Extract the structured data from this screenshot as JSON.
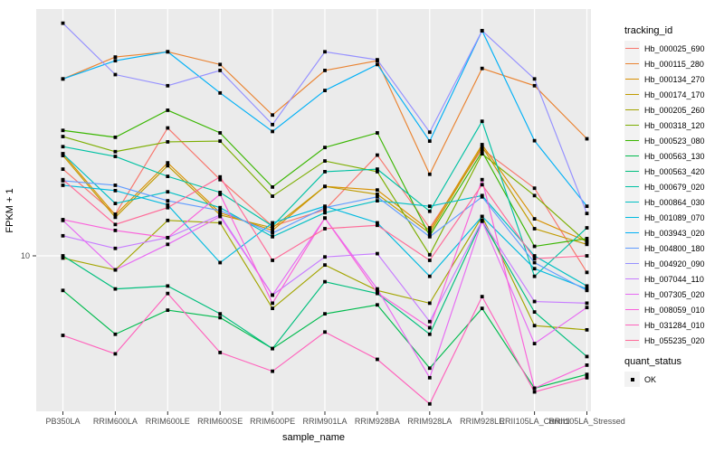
{
  "chart_data": {
    "type": "line",
    "title": "",
    "xlabel": "sample_name",
    "ylabel": "FPKM + 1",
    "y_scale": "log10",
    "y_ticks": [
      10
    ],
    "y_tick_labels": [
      "10"
    ],
    "ylim_log10": [
      0.05,
      1.975
    ],
    "grid": "white-on-gray",
    "panel_bg": "#EBEBEB",
    "grid_color": "#FFFFFF",
    "point_color": "#000000",
    "point_shape": "square",
    "legend": {
      "position": "right",
      "tracking_title": "tracking_id",
      "quant_title": "quant_status",
      "quant_ok_label": "OK"
    },
    "categories": [
      "PB350LA",
      "RRIM600LA",
      "RRIM600LE",
      "RRIM600SE",
      "RRIM600PE",
      "RRIM901LA",
      "RRIM928BA",
      "RRIM928LA",
      "RRIM928LE",
      "RRII105LA_Control",
      "RRII105LA_Stressed"
    ],
    "series": [
      {
        "name": "Hb_000025_690",
        "color": "#F8766D",
        "values": [
          22,
          14.6,
          32,
          20,
          13.1,
          15.2,
          25,
          12.9,
          26.4,
          18.5,
          8.6
        ]
      },
      {
        "name": "Hb_000115_280",
        "color": "#EA8331",
        "values": [
          50,
          61,
          64,
          57,
          36,
          54,
          59,
          21,
          55,
          47,
          29
        ]
      },
      {
        "name": "Hb_000134_270",
        "color": "#D89000",
        "values": [
          25.3,
          14.5,
          23.3,
          14.8,
          12.6,
          18.8,
          18.2,
          12.6,
          27.5,
          14,
          11.4
        ]
      },
      {
        "name": "Hb_000174_170",
        "color": "#C09B00",
        "values": [
          24.9,
          14.2,
          22.7,
          14.5,
          12.9,
          18.8,
          17.5,
          12.3,
          27,
          12.8,
          11.1
        ]
      },
      {
        "name": "Hb_000205_260",
        "color": "#A3A500",
        "values": [
          9.8,
          8.8,
          13.8,
          13.5,
          6.2,
          9.2,
          7.3,
          6.5,
          14.3,
          5.3,
          5.1
        ]
      },
      {
        "name": "Hb_000318_120",
        "color": "#7CAE00",
        "values": [
          29.6,
          25.8,
          28.2,
          28.4,
          17.2,
          23.7,
          21.5,
          10.1,
          25.3,
          17.3,
          11.3
        ]
      },
      {
        "name": "Hb_000523_080",
        "color": "#39B600",
        "values": [
          31.3,
          29.4,
          37.6,
          30.6,
          18.7,
          26.8,
          30.6,
          12,
          25.8,
          10.9,
          11.7
        ]
      },
      {
        "name": "Hb_000563_130",
        "color": "#00BB4E",
        "values": [
          7.3,
          4.9,
          6.1,
          5.7,
          4.3,
          5.9,
          6.4,
          3.6,
          6.2,
          3.0,
          3.4
        ]
      },
      {
        "name": "Hb_000563_420",
        "color": "#00BF7D",
        "values": [
          10,
          7.4,
          7.6,
          5.9,
          4.3,
          7.9,
          7.1,
          4.9,
          13.7,
          6.0,
          4.0
        ]
      },
      {
        "name": "Hb_000679_020",
        "color": "#00C1A3",
        "values": [
          27,
          24.7,
          20.6,
          17.8,
          13.1,
          21.5,
          22,
          15,
          34,
          8.3,
          12.9
        ]
      },
      {
        "name": "Hb_000864_030",
        "color": "#00BFC4",
        "values": [
          25.3,
          16.1,
          17.9,
          15.5,
          11.9,
          14.8,
          16.5,
          15.7,
          17.3,
          10,
          7.6
        ]
      },
      {
        "name": "Hb_001089_070",
        "color": "#00BAE0",
        "values": [
          19,
          18.1,
          15.9,
          9.4,
          13.5,
          15.7,
          13.5,
          8.3,
          14.3,
          8.9,
          7.4
        ]
      },
      {
        "name": "Hb_003943_020",
        "color": "#00B0F6",
        "values": [
          50,
          59,
          64,
          44,
          31,
          45,
          57,
          28.4,
          77.5,
          28.5,
          15.7
        ]
      },
      {
        "name": "Hb_004800_180",
        "color": "#619CFF",
        "values": [
          19.8,
          19,
          16.5,
          15.1,
          12.3,
          15.5,
          17.1,
          11.9,
          17.1,
          9.4,
          7.3
        ]
      },
      {
        "name": "Hb_004920_090",
        "color": "#9590FF",
        "values": [
          83,
          52,
          47,
          54,
          33,
          64,
          59.5,
          30.8,
          77.5,
          50,
          14.7
        ]
      },
      {
        "name": "Hb_007044_110",
        "color": "#C77CFF",
        "values": [
          12,
          10.7,
          11.8,
          14.5,
          7.0,
          9.9,
          10.2,
          5.5,
          13.8,
          6.6,
          6.5
        ]
      },
      {
        "name": "Hb_007305_020",
        "color": "#E76BF3",
        "values": [
          13.8,
          8.8,
          11.1,
          14.3,
          7.0,
          14.1,
          7.4,
          3.3,
          13.7,
          4.5,
          6.25
        ]
      },
      {
        "name": "Hb_008059_010",
        "color": "#FA62DB",
        "values": [
          13.9,
          12.6,
          11.8,
          17.5,
          6.5,
          14.1,
          7.15,
          5.2,
          20,
          3.0,
          3.7
        ]
      },
      {
        "name": "Hb_031284_010",
        "color": "#FF62BC",
        "values": [
          4.85,
          4.1,
          7.1,
          4.15,
          3.5,
          5.0,
          3.9,
          2.6,
          6.9,
          2.9,
          3.3
        ]
      },
      {
        "name": "Hb_055235_020",
        "color": "#FF6A98",
        "values": [
          20,
          13.3,
          15.5,
          20.5,
          9.6,
          12.8,
          13.2,
          9.6,
          19.1,
          9.75,
          10
        ]
      }
    ]
  }
}
